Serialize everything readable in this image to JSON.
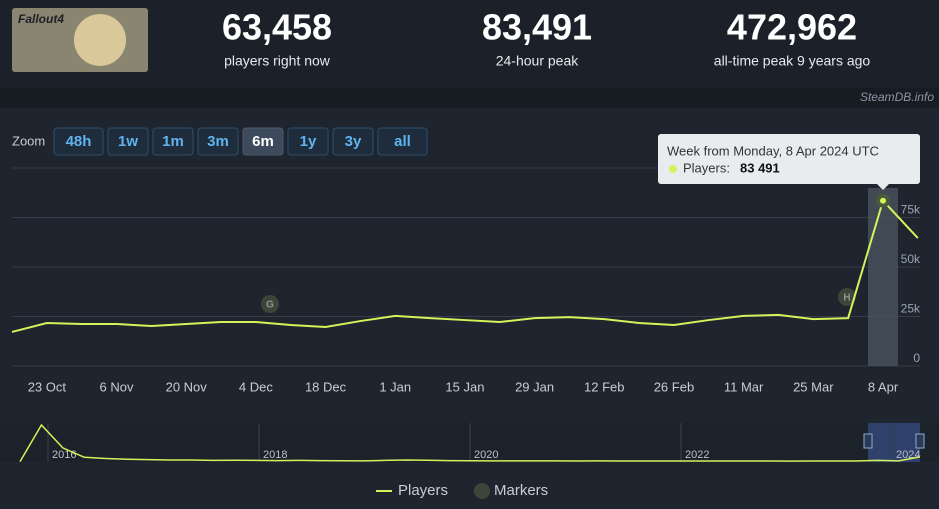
{
  "header": {
    "game": "Fallout4",
    "stats": [
      {
        "value": "63,458",
        "label": "players right now"
      },
      {
        "value": "83,491",
        "label": "24-hour peak"
      },
      {
        "value": "472,962",
        "label": "all-time peak 9 years ago"
      }
    ],
    "watermark": "SteamDB.info"
  },
  "zoom": {
    "label": "Zoom",
    "options": [
      "48h",
      "1w",
      "1m",
      "3m",
      "6m",
      "1y",
      "3y",
      "all"
    ],
    "active": "6m"
  },
  "chart_data": {
    "type": "line",
    "categories": [
      null,
      "23 Oct",
      null,
      "6 Nov",
      null,
      "20 Nov",
      null,
      "4 Dec",
      null,
      "18 Dec",
      null,
      "1 Jan",
      null,
      "15 Jan",
      null,
      "29 Jan",
      null,
      "12 Feb",
      null,
      "26 Feb",
      null,
      "11 Mar",
      null,
      "25 Mar",
      null,
      "8 Apr",
      null
    ],
    "series": [
      {
        "name": "Players",
        "color": "#d4f25a",
        "values": [
          17200,
          21700,
          21200,
          21200,
          20200,
          21200,
          22200,
          22200,
          20700,
          19700,
          22700,
          25300,
          24200,
          23200,
          22200,
          24200,
          24700,
          23700,
          21700,
          20700,
          23200,
          25300,
          25800,
          23700,
          24200,
          83491,
          64600
        ]
      }
    ],
    "ylim": [
      0,
      100000
    ],
    "yticks": [
      0,
      {
        "value": 25000,
        "label": "25k"
      },
      {
        "value": 50000,
        "label": "50k"
      },
      {
        "value": 75000,
        "label": "75k"
      }
    ],
    "grid": true,
    "markers": [
      {
        "label": "G"
      },
      {
        "label": "H"
      }
    ],
    "marker_legend": {
      "name": "Markers",
      "color": "#3c4638"
    },
    "tooltip": {
      "title": "Week from Monday, 8 Apr 2024 UTC",
      "label": "Players:",
      "value": "83 491"
    },
    "navigator": {
      "years": [
        "2016",
        "2018",
        "2020",
        "2022",
        "2024"
      ],
      "values": [
        5000,
        472962,
        180000,
        60000,
        45000,
        35000,
        30000,
        25000,
        25000,
        20000,
        22000,
        20000,
        18000,
        20000,
        18000,
        16000,
        15000,
        20000,
        25000,
        22000,
        18000,
        16000,
        15000,
        14000,
        15000,
        14000,
        13000,
        14000,
        13000,
        12000,
        13000,
        12000,
        12000,
        13000,
        12000,
        12000,
        11000,
        12000,
        12000,
        13000,
        20000,
        15000,
        65000
      ]
    }
  }
}
